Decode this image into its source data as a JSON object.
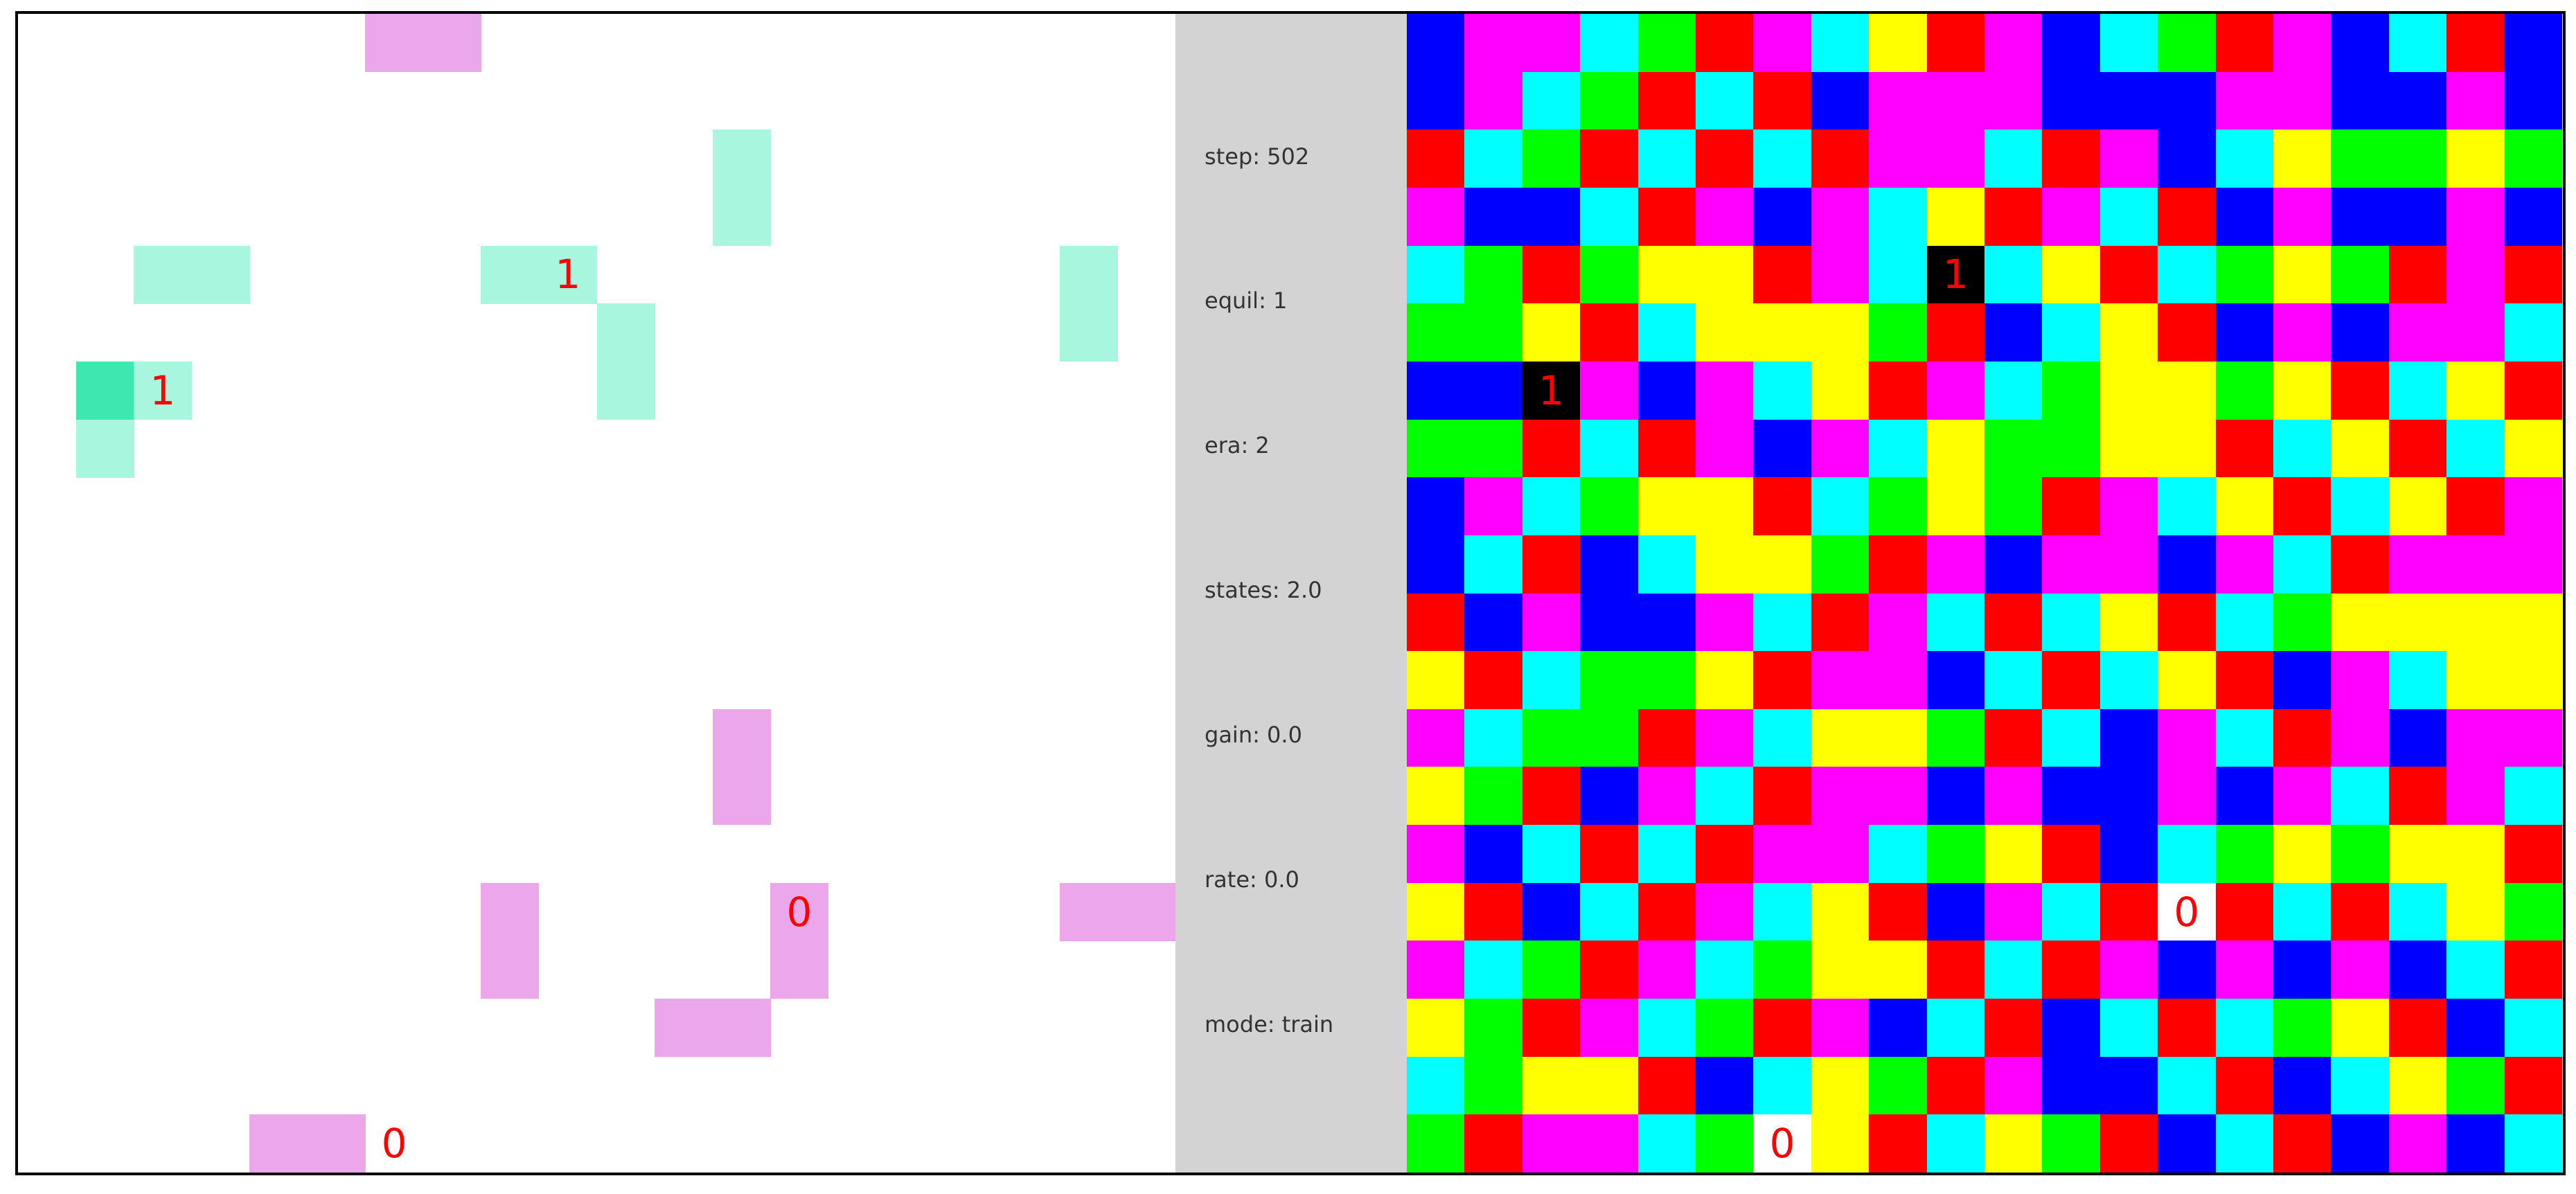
{
  "stats": [
    {
      "label": "step: 502"
    },
    {
      "label": "equil: 1"
    },
    {
      "label": "era: 2"
    },
    {
      "label": "states: 2.0"
    },
    {
      "label": "gain: 0.0"
    },
    {
      "label": "rate: 0.0"
    },
    {
      "label": "mode: train"
    }
  ],
  "colors": {
    "pink": "#eca6ea",
    "mint": "#a8f6dd",
    "mint_dark": "#3ee6b0",
    "label_red": "#ff0000",
    "stats_bg": "#d3d3d3",
    "B": "#0000ff",
    "M": "#ff00ff",
    "C": "#00ffff",
    "G": "#00ff00",
    "R": "#ff0000",
    "Y": "#ffff00",
    "K": "#000000",
    "W": "#ffffff"
  },
  "left_grid": {
    "cols": 20,
    "rows": 20,
    "cells": [
      {
        "row": 0,
        "col": 6,
        "color": "pink"
      },
      {
        "row": 0,
        "col": 7,
        "color": "pink"
      },
      {
        "row": 2,
        "col": 12,
        "color": "mint"
      },
      {
        "row": 3,
        "col": 12,
        "color": "mint"
      },
      {
        "row": 4,
        "col": 2,
        "color": "mint"
      },
      {
        "row": 4,
        "col": 3,
        "color": "mint"
      },
      {
        "row": 4,
        "col": 8,
        "color": "mint"
      },
      {
        "row": 4,
        "col": 9,
        "color": "mint",
        "label": "1"
      },
      {
        "row": 4,
        "col": 18,
        "color": "mint"
      },
      {
        "row": 5,
        "col": 18,
        "color": "mint"
      },
      {
        "row": 5,
        "col": 10,
        "color": "mint"
      },
      {
        "row": 6,
        "col": 10,
        "color": "mint"
      },
      {
        "row": 6,
        "col": 1,
        "color": "mint_dark"
      },
      {
        "row": 6,
        "col": 2,
        "color": "mint",
        "label": "1"
      },
      {
        "row": 7,
        "col": 1,
        "color": "mint"
      },
      {
        "row": 12,
        "col": 12,
        "color": "pink"
      },
      {
        "row": 13,
        "col": 12,
        "color": "pink"
      },
      {
        "row": 15,
        "col": 8,
        "color": "pink"
      },
      {
        "row": 16,
        "col": 8,
        "color": "pink"
      },
      {
        "row": 15,
        "col": 13,
        "color": "pink",
        "label": "0"
      },
      {
        "row": 16,
        "col": 13,
        "color": "pink"
      },
      {
        "row": 15,
        "col": 18,
        "color": "pink"
      },
      {
        "row": 15,
        "col": 19,
        "color": "pink"
      },
      {
        "row": 17,
        "col": 11,
        "color": "pink"
      },
      {
        "row": 17,
        "col": 12,
        "color": "pink"
      },
      {
        "row": 19,
        "col": 4,
        "color": "pink"
      },
      {
        "row": 19,
        "col": 5,
        "color": "pink"
      },
      {
        "row": 19,
        "col": 6,
        "color": "",
        "label": "0"
      }
    ]
  },
  "right_grid": {
    "cols": 20,
    "rows": 20,
    "rowsData": [
      "BMMCGRMCYRMBCGRMBCRB",
      "BMCGRCRBMMMBBBMMBBMB",
      "RCGRCRCRMMCRMBCYGGYG",
      "MBBCRMBMCYRMCRBMBBMB",
      "CGRGYYRMCKCYRCGYGRMR",
      "GGYRCYYYGRBCYRBMBMMC",
      "BBKMBMCYRMCGYYGYRCYR",
      "GGRCRMBMCYGGYYRCYRCY",
      "BMCGYYRCGYGRMCYRCYRM",
      "BCRBCYYGRMBMMBMCRMMM",
      "RBMBBMCRMCRCYRCGYYYY",
      "YRCGGYRMMBCRCYRBMCYY",
      "MCGGRMCYYGRCBMCRMBMM",
      "YGRBMCRMMBMBBMBMCRMC",
      "MBCRCRMMCGYRBCGYGYYR",
      "YRBCRMCYRBMCRWRCRCYG",
      "MCGRMCGYYRCRMBMBMBCR",
      "YGRMCGRMBCRBCRCGYRBC",
      "CGYYRBCYGRMBBCRBCYGR",
      "GRMMCGWYRCYGRBCRBMBC"
    ],
    "labels": [
      {
        "row": 4,
        "col": 9,
        "label": "1"
      },
      {
        "row": 6,
        "col": 2,
        "label": "1"
      },
      {
        "row": 15,
        "col": 13,
        "label": "0"
      },
      {
        "row": 19,
        "col": 6,
        "label": "0"
      }
    ]
  }
}
